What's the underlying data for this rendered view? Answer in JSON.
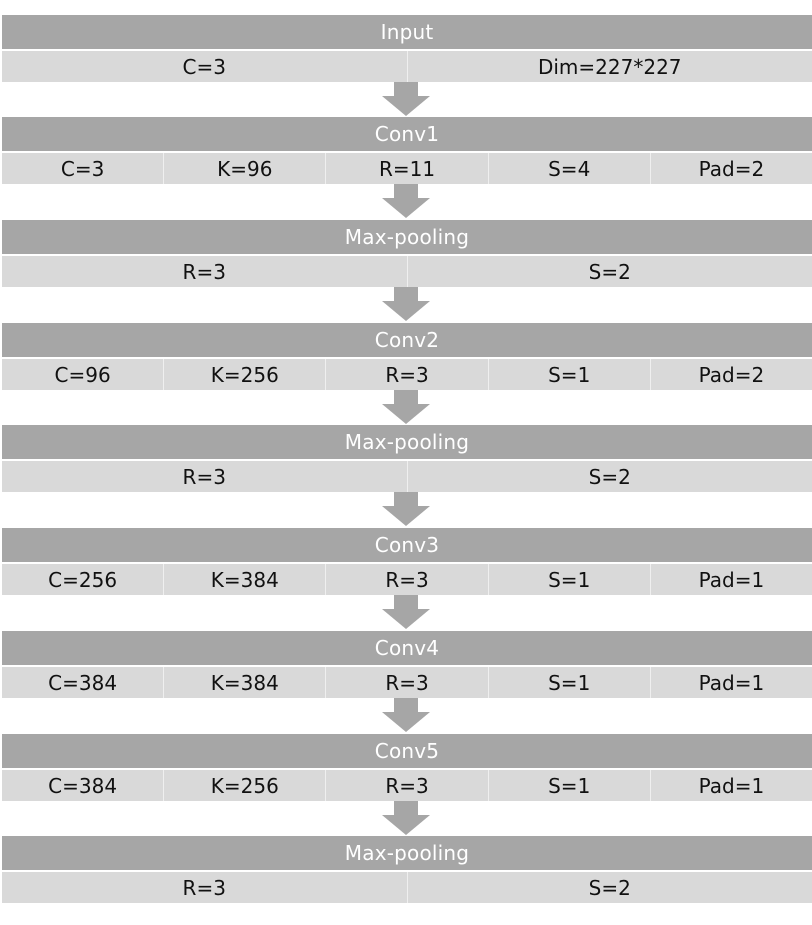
{
  "colors": {
    "header_bg": "#a6a6a6",
    "params_bg": "#d9d9d9",
    "arrow": "#a6a6a6",
    "header_text": "#ffffff",
    "param_text": "#111111"
  },
  "blocks": [
    {
      "title": "Input",
      "params": [
        "C=3",
        "Dim=227*227"
      ]
    },
    {
      "title": "Conv1",
      "params": [
        "C=3",
        "K=96",
        "R=11",
        "S=4",
        "Pad=2"
      ]
    },
    {
      "title": "Max-pooling",
      "params": [
        "R=3",
        "S=2"
      ]
    },
    {
      "title": "Conv2",
      "params": [
        "C=96",
        "K=256",
        "R=3",
        "S=1",
        "Pad=2"
      ]
    },
    {
      "title": "Max-pooling",
      "params": [
        "R=3",
        "S=2"
      ]
    },
    {
      "title": "Conv3",
      "params": [
        "C=256",
        "K=384",
        "R=3",
        "S=1",
        "Pad=1"
      ]
    },
    {
      "title": "Conv4",
      "params": [
        "C=384",
        "K=384",
        "R=3",
        "S=1",
        "Pad=1"
      ]
    },
    {
      "title": "Conv5",
      "params": [
        "C=384",
        "K=256",
        "R=3",
        "S=1",
        "Pad=1"
      ]
    },
    {
      "title": "Max-pooling",
      "params": [
        "R=3",
        "S=2"
      ]
    }
  ],
  "arrow_icon": "down-arrow-icon"
}
